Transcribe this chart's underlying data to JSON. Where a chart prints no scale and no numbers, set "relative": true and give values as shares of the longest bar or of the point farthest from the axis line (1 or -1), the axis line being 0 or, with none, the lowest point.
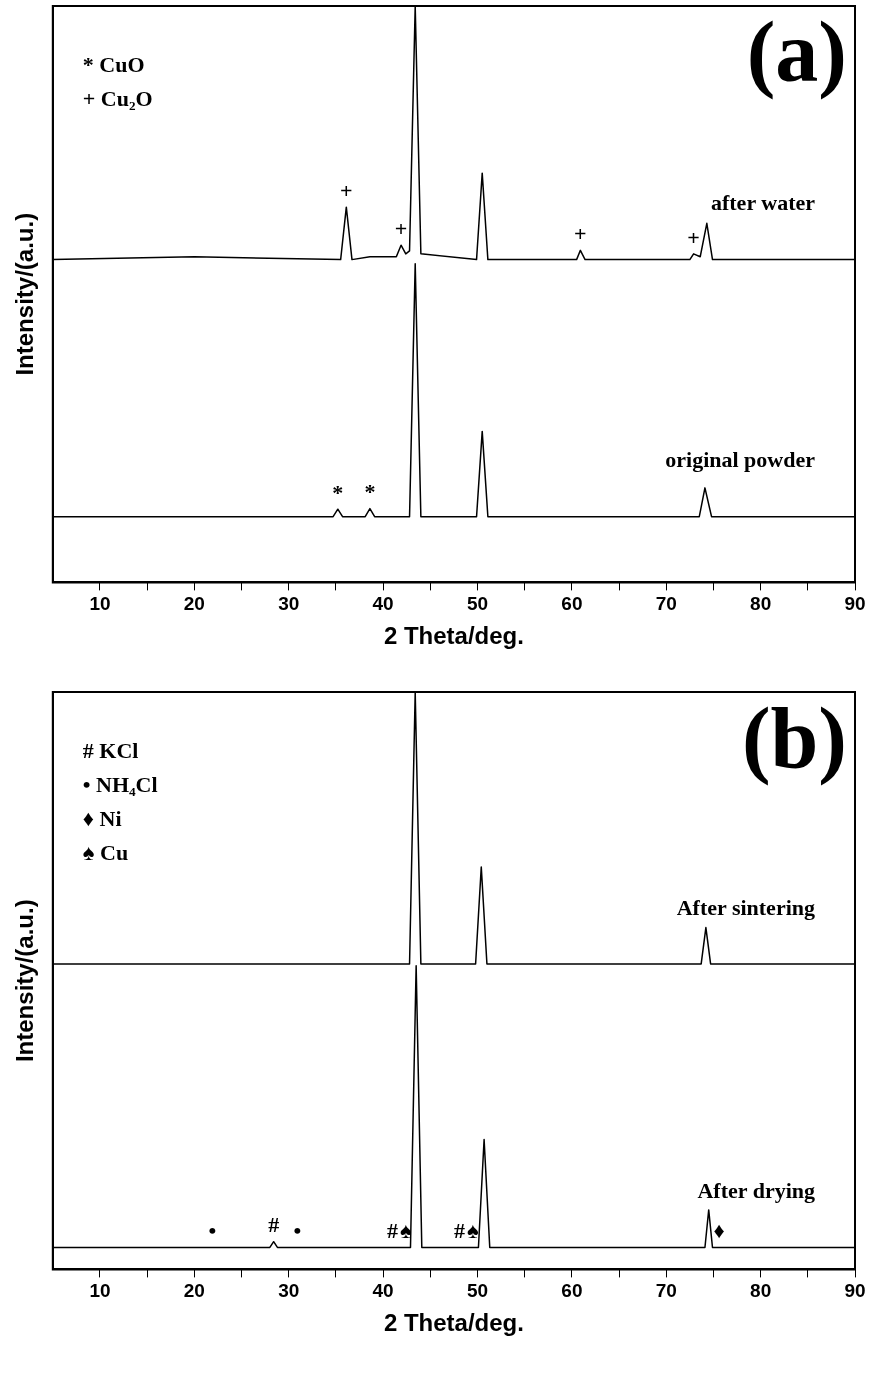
{
  "chart_data": [
    {
      "type": "line",
      "title": "(a)",
      "xlabel": "2 Theta/deg.",
      "ylabel": "Intensity/(a.u.)",
      "relative": true,
      "xlim": [
        5,
        90
      ],
      "xticks": [
        10,
        {
          "value": 15,
          "label": null
        },
        20,
        {
          "value": 25,
          "label": null
        },
        30,
        {
          "value": 35,
          "label": null
        },
        40,
        {
          "value": 45,
          "label": null
        },
        50,
        {
          "value": 55,
          "label": null
        },
        60,
        {
          "value": 65,
          "label": null
        },
        70,
        {
          "value": 75,
          "label": null
        },
        80,
        {
          "value": 85,
          "label": null
        },
        90
      ],
      "grid": false,
      "legend": false,
      "marker": "none",
      "line_style": "solid",
      "series": [
        {
          "name": "after water",
          "color": "#000000",
          "x": [
            5,
            20,
            35.5,
            36.1,
            36.7,
            38.6,
            41.4,
            41.9,
            42.4,
            42.8,
            43.4,
            44.0,
            49.9,
            50.5,
            51.1,
            60.5,
            60.9,
            61.4,
            72.5,
            72.9,
            73.6,
            74.3,
            74.9,
            90
          ],
          "values": [
            0.56,
            0.565,
            0.56,
            0.651,
            0.56,
            0.565,
            0.565,
            0.585,
            0.57,
            0.575,
            1,
            0.57,
            0.56,
            0.71,
            0.56,
            0.56,
            0.576,
            0.56,
            0.56,
            0.57,
            0.565,
            0.623,
            0.56,
            0.56
          ]
        },
        {
          "name": "original powder",
          "color": "#000000",
          "x": [
            5,
            34.7,
            35.2,
            35.7,
            38.1,
            38.6,
            39.1,
            42.8,
            43.4,
            44.0,
            49.9,
            50.5,
            51.1,
            73.5,
            74.1,
            74.8,
            90
          ],
          "values": [
            0.114,
            0.114,
            0.127,
            0.114,
            0.114,
            0.128,
            0.114,
            0.114,
            0.553,
            0.114,
            0.114,
            0.262,
            0.114,
            0.114,
            0.164,
            0.114,
            0.114
          ]
        }
      ],
      "annotations": [
        "* CuO",
        "+ Cu₂O",
        {
          "text": "+",
          "x": 36.1,
          "y": 0.651
        },
        {
          "text": "+",
          "x": 41.9,
          "y": 0.585
        },
        {
          "text": "+",
          "x": 60.9,
          "y": 0.576
        },
        {
          "text": "+",
          "x": 72.9,
          "y": 0.57
        },
        {
          "text": "*",
          "x": 35.2,
          "y": 0.127
        },
        {
          "text": "*",
          "x": 38.6,
          "y": 0.128
        }
      ]
    },
    {
      "type": "line",
      "title": "(b)",
      "xlabel": "2 Theta/deg.",
      "ylabel": "Intensity/(a.u.)",
      "relative": true,
      "xlim": [
        5,
        90
      ],
      "xticks": [
        10,
        {
          "value": 15,
          "label": null
        },
        20,
        {
          "value": 25,
          "label": null
        },
        30,
        {
          "value": 35,
          "label": null
        },
        40,
        {
          "value": 45,
          "label": null
        },
        50,
        {
          "value": 55,
          "label": null
        },
        60,
        {
          "value": 65,
          "label": null
        },
        70,
        {
          "value": 75,
          "label": null
        },
        80,
        {
          "value": 85,
          "label": null
        },
        90
      ],
      "grid": false,
      "legend": false,
      "marker": "none",
      "line_style": "solid",
      "series": [
        {
          "name": "After sintering",
          "color": "#000000",
          "x": [
            5,
            42.8,
            43.4,
            44.0,
            49.8,
            50.4,
            51.0,
            73.7,
            74.2,
            74.7,
            90
          ],
          "values": [
            0.529,
            0.529,
            1,
            0.529,
            0.529,
            0.697,
            0.529,
            0.529,
            0.592,
            0.529,
            0.529
          ]
        },
        {
          "name": "After drying",
          "color": "#000000",
          "x": [
            5,
            21.9,
            28.0,
            28.4,
            28.8,
            30.9,
            41.0,
            42.4,
            42.9,
            43.5,
            44.1,
            48.1,
            49.5,
            50.1,
            50.7,
            51.3,
            74.1,
            74.5,
            74.9,
            75.6,
            90
          ],
          "values": [
            0.038,
            0.038,
            0.038,
            0.048,
            0.038,
            0.038,
            0.038,
            0.038,
            0.038,
            0.526,
            0.038,
            0.038,
            0.038,
            0.038,
            0.225,
            0.038,
            0.038,
            0.103,
            0.038,
            0.038,
            0.038
          ]
        }
      ],
      "annotations": [
        "# KCl",
        "• NH₄Cl",
        "♦ Ni",
        "♠ Cu",
        {
          "text": "•",
          "x": 21.9,
          "y": 0.038
        },
        {
          "text": "#",
          "x": 28.4,
          "y": 0.048
        },
        {
          "text": "•",
          "x": 30.9,
          "y": 0.038
        },
        {
          "text": "#",
          "x": 41.0,
          "y": 0.038
        },
        {
          "text": "♠",
          "x": 42.4,
          "y": 0.038
        },
        {
          "text": "#",
          "x": 48.1,
          "y": 0.038
        },
        {
          "text": "♠",
          "x": 49.5,
          "y": 0.038
        },
        {
          "text": "♦",
          "x": 75.6,
          "y": 0.038
        }
      ]
    }
  ]
}
